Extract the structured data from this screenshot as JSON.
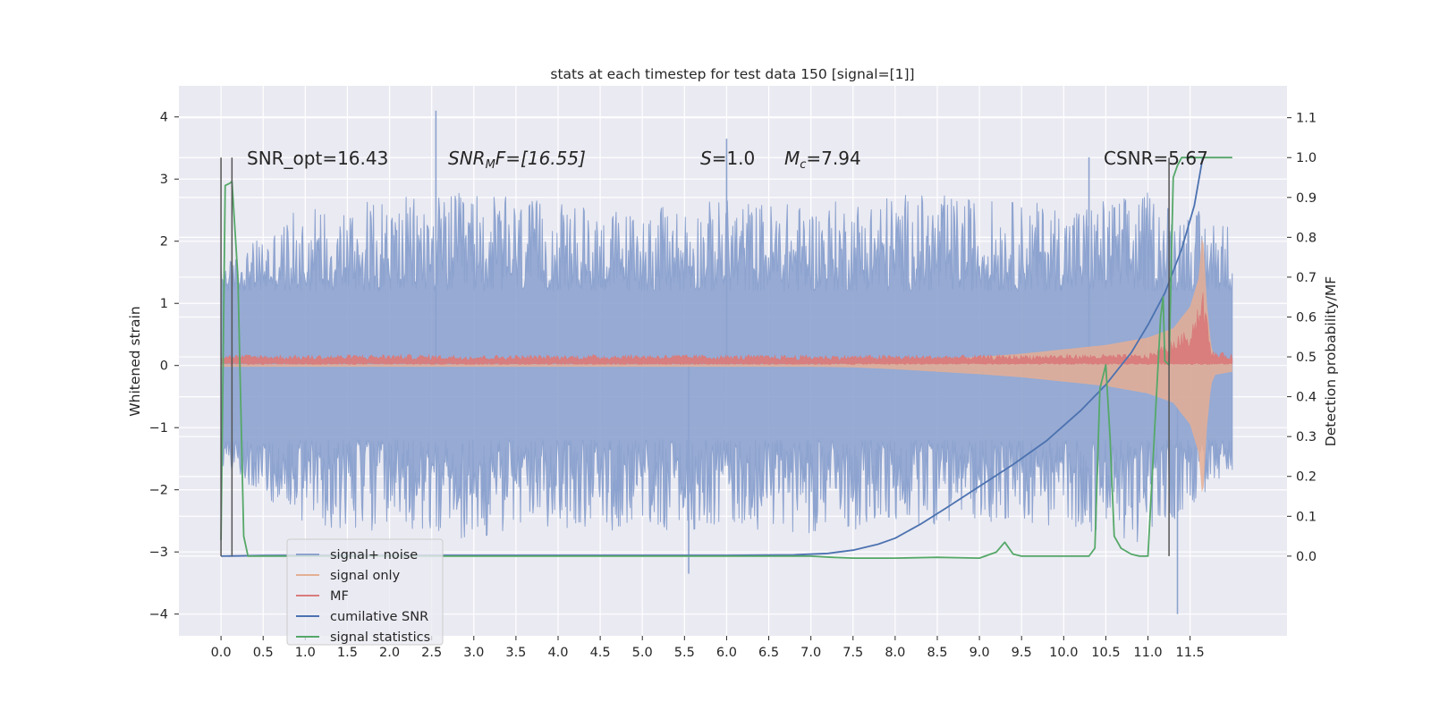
{
  "chart_data": {
    "type": "line",
    "title": "stats at each timestep for test data 150 [signal=[1]]",
    "xlabel": "",
    "ylabel": "Whitened strain",
    "ylabel_right": "Detection probability/MF",
    "xlim": [
      -0.5,
      12.65
    ],
    "ylim": [
      -4.35,
      4.5
    ],
    "ylim_right": [
      -0.2,
      1.18
    ],
    "x_ticks": [
      "0.0",
      "0.5",
      "1.0",
      "1.5",
      "2.0",
      "2.5",
      "3.0",
      "3.5",
      "4.0",
      "4.5",
      "5.0",
      "5.5",
      "6.0",
      "6.5",
      "7.0",
      "7.5",
      "8.0",
      "8.5",
      "9.0",
      "9.5",
      "10.0",
      "10.5",
      "11.0",
      "11.5"
    ],
    "y_ticks_left": [
      "4",
      "3",
      "2",
      "1",
      "0",
      "−1",
      "−2",
      "−3",
      "−4"
    ],
    "y_ticks_right": [
      "1.1",
      "1.0",
      "0.9",
      "0.8",
      "0.7",
      "0.6",
      "0.5",
      "0.4",
      "0.3",
      "0.2",
      "0.1",
      "0.0"
    ],
    "grid": true,
    "legend_position": "lower-left",
    "annotations": [
      {
        "text": "SNR_opt=16.43"
      },
      {
        "text": "SNR_MF=[16.55]",
        "base": "SNR",
        "sub": "M",
        "rest": "F=[16.55]"
      },
      {
        "text": "S=1.0",
        "base": "S",
        "rest": "=1.0"
      },
      {
        "text": "M_c=7.94",
        "base": "M",
        "sub": "c",
        "rest": "=7.94"
      },
      {
        "text": "CSNR=5.67"
      }
    ],
    "series": [
      {
        "name": "signal+ noise",
        "axis": "left",
        "color": "#8da3cf",
        "envelope_x": [
          0.0,
          1.0,
          2.0,
          3.0,
          4.0,
          5.0,
          6.0,
          7.0,
          8.0,
          9.0,
          10.0,
          11.0,
          12.0
        ],
        "envelope_upper": [
          1.6,
          2.6,
          2.7,
          2.8,
          2.6,
          2.5,
          2.7,
          2.6,
          2.8,
          2.7,
          2.6,
          2.8,
          2.3
        ],
        "envelope_lower": [
          -1.6,
          -2.6,
          -2.7,
          -2.8,
          -2.6,
          -2.7,
          -2.6,
          -2.7,
          -2.6,
          -2.5,
          -2.6,
          -2.9,
          -1.7
        ],
        "notable_spikes": [
          {
            "x": 2.55,
            "y": 4.1
          },
          {
            "x": 6.0,
            "y": 3.65
          },
          {
            "x": 10.3,
            "y": 3.35
          },
          {
            "x": 5.55,
            "y": -3.35
          },
          {
            "x": 11.35,
            "y": -4.0
          }
        ]
      },
      {
        "name": "signal only",
        "axis": "left",
        "color": "#e5ae94",
        "x": [
          0.0,
          1.0,
          2.0,
          3.0,
          4.0,
          5.0,
          6.0,
          7.0,
          7.5,
          8.0,
          8.5,
          9.0,
          9.5,
          10.0,
          10.5,
          11.0,
          11.3,
          11.5,
          11.6,
          11.65,
          11.7,
          11.75,
          11.8,
          12.0
        ],
        "amplitude": [
          0.02,
          0.02,
          0.02,
          0.02,
          0.02,
          0.02,
          0.02,
          0.02,
          0.03,
          0.06,
          0.1,
          0.14,
          0.19,
          0.26,
          0.33,
          0.45,
          0.6,
          0.95,
          1.4,
          2.2,
          1.0,
          0.3,
          0.15,
          0.1
        ]
      },
      {
        "name": "MF",
        "axis": "left",
        "color": "#d97b7b",
        "x": [
          0.0,
          1.0,
          2.0,
          3.0,
          4.0,
          5.0,
          6.0,
          7.0,
          8.0,
          9.0,
          10.0,
          11.0,
          11.5,
          11.65,
          11.75,
          12.0
        ],
        "upper": [
          0.15,
          0.14,
          0.15,
          0.14,
          0.14,
          0.15,
          0.14,
          0.14,
          0.14,
          0.14,
          0.15,
          0.15,
          0.5,
          1.1,
          0.2,
          0.15
        ],
        "lower": [
          0.05,
          0.05,
          0.05,
          0.05,
          0.05,
          0.05,
          0.05,
          0.05,
          0.05,
          0.05,
          0.05,
          0.05,
          0.05,
          0.05,
          0.05,
          0.05
        ]
      },
      {
        "name": "cumilative SNR",
        "axis": "right",
        "color": "#4c72b0",
        "x": [
          0.0,
          0.5,
          1.0,
          2.0,
          3.0,
          4.0,
          5.0,
          6.0,
          6.8,
          7.2,
          7.5,
          7.8,
          8.0,
          8.3,
          8.6,
          9.0,
          9.4,
          9.8,
          10.2,
          10.5,
          10.8,
          11.0,
          11.2,
          11.4,
          11.55,
          11.65
        ],
        "y": [
          0.0,
          0.0015,
          0.002,
          0.002,
          0.002,
          0.002,
          0.002,
          0.002,
          0.003,
          0.007,
          0.015,
          0.03,
          0.045,
          0.08,
          0.12,
          0.175,
          0.23,
          0.29,
          0.365,
          0.43,
          0.51,
          0.58,
          0.66,
          0.77,
          0.88,
          1.0
        ]
      },
      {
        "name": "signal statistics",
        "axis": "right",
        "color": "#55a868",
        "x": [
          0.0,
          0.05,
          0.1,
          0.13,
          0.2,
          0.27,
          0.32,
          0.5,
          1.0,
          2.0,
          3.0,
          4.0,
          5.0,
          6.0,
          7.0,
          7.25,
          7.5,
          8.0,
          8.5,
          9.0,
          9.2,
          9.3,
          9.4,
          9.5,
          10.0,
          10.3,
          10.37,
          10.43,
          10.5,
          10.55,
          10.6,
          10.68,
          10.8,
          10.9,
          11.0,
          11.15,
          11.18,
          11.2,
          11.25,
          11.3,
          11.35,
          11.4,
          11.5,
          11.7,
          12.0
        ],
        "y": [
          0.04,
          0.93,
          0.935,
          0.94,
          0.7,
          0.05,
          0.0,
          0.0,
          0.0,
          0.0,
          0.0,
          0.0,
          0.0,
          0.0,
          0.0,
          -0.003,
          -0.005,
          -0.005,
          -0.003,
          -0.005,
          0.01,
          0.035,
          0.005,
          0.0,
          0.0,
          0.0,
          0.02,
          0.42,
          0.48,
          0.3,
          0.05,
          0.02,
          0.005,
          0.0,
          0.0,
          0.6,
          0.65,
          0.49,
          0.48,
          0.95,
          0.98,
          1.0,
          1.0,
          1.0,
          1.0
        ]
      }
    ],
    "vertical_lines": [
      {
        "x": 0.0,
        "color": "#555555"
      },
      {
        "x": 0.13,
        "color": "#555555"
      },
      {
        "x": 11.25,
        "color": "#555555"
      }
    ]
  }
}
